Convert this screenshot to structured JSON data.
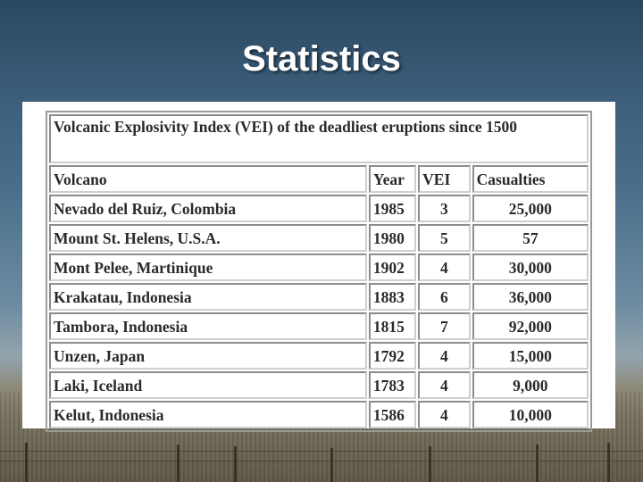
{
  "slide": {
    "title": "Statistics"
  },
  "table": {
    "caption": "Volcanic Explosivity Index (VEI) of the deadliest eruptions since 1500",
    "headers": {
      "volcano": "Volcano",
      "year": "Year",
      "vei": "VEI",
      "casualties": "Casualties"
    },
    "rows": [
      {
        "volcano": "Nevado del Ruiz, Colombia",
        "year": "1985",
        "vei": "3",
        "casualties": "25,000"
      },
      {
        "volcano": "Mount St. Helens, U.S.A.",
        "year": "1980",
        "vei": "5",
        "casualties": "57"
      },
      {
        "volcano": "Mont Pelee, Martinique",
        "year": "1902",
        "vei": "4",
        "casualties": "30,000"
      },
      {
        "volcano": "Krakatau, Indonesia",
        "year": "1883",
        "vei": "6",
        "casualties": "36,000"
      },
      {
        "volcano": "Tambora, Indonesia",
        "year": "1815",
        "vei": "7",
        "casualties": "92,000"
      },
      {
        "volcano": "Unzen, Japan",
        "year": "1792",
        "vei": "4",
        "casualties": "15,000"
      },
      {
        "volcano": "Laki, Iceland",
        "year": "1783",
        "vei": "4",
        "casualties": "9,000"
      },
      {
        "volcano": "Kelut, Indonesia",
        "year": "1586",
        "vei": "4",
        "casualties": "10,000"
      }
    ]
  }
}
